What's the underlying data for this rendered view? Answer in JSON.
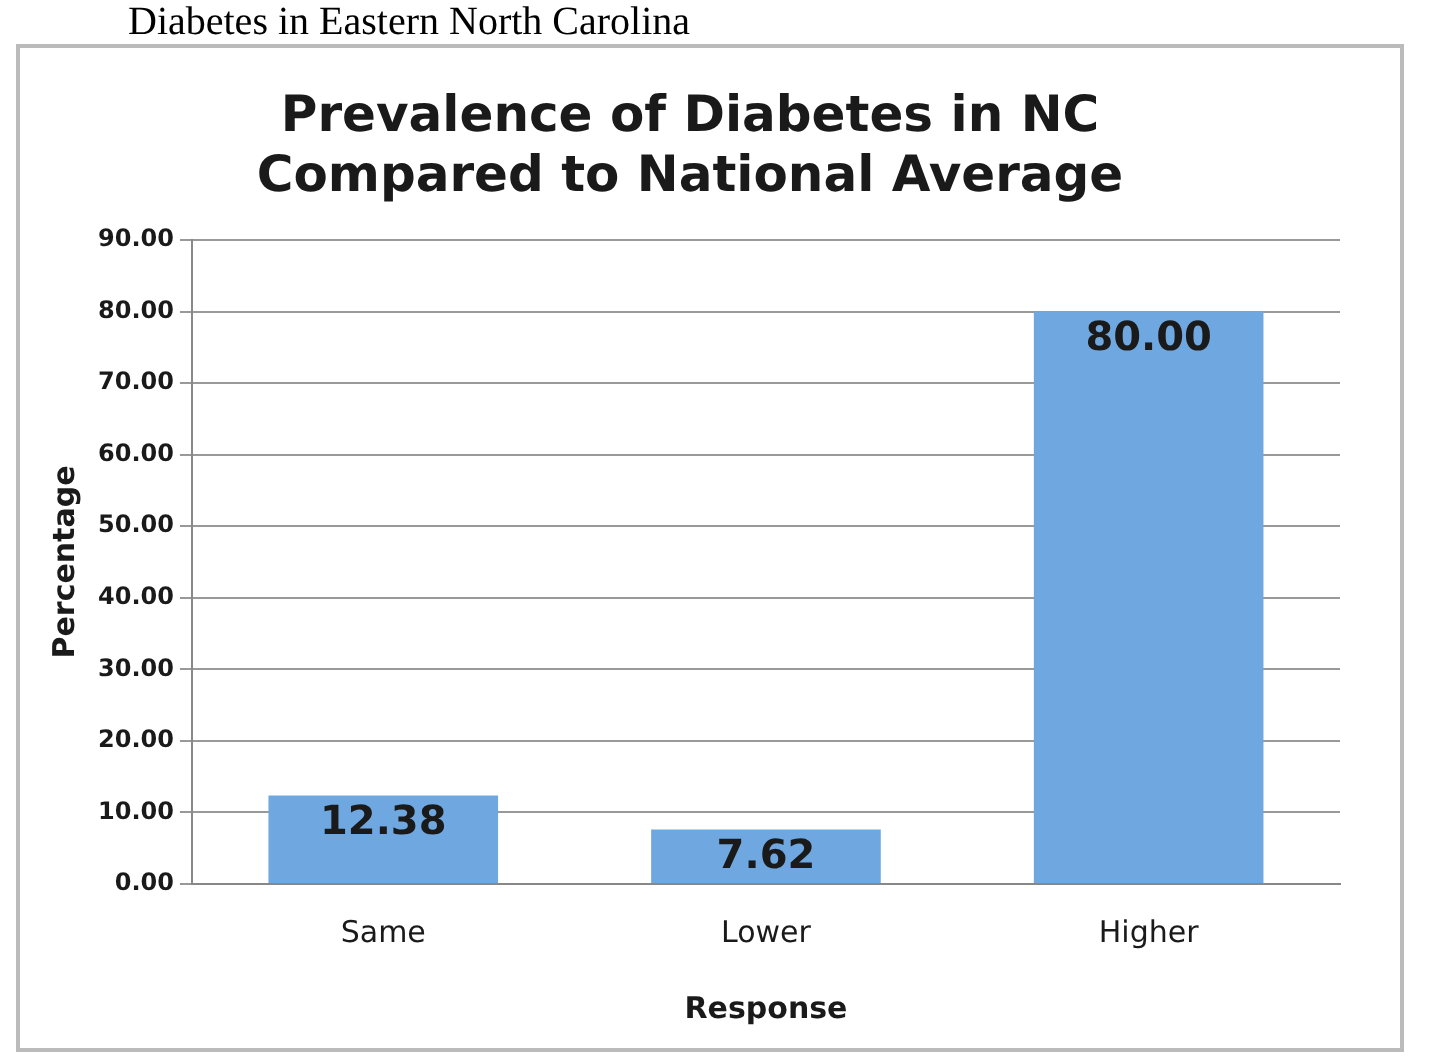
{
  "chart_data": {
    "type": "bar",
    "title": "Prevalence of Diabetes in NC\nCompared to National Average",
    "xlabel": "Response",
    "ylabel": "Percentage",
    "annotations": [
      "Diabetes in Eastern North Carolina"
    ],
    "categories": [
      "Same",
      "Lower",
      "Higher"
    ],
    "values": [
      12.38,
      7.62,
      80
    ],
    "value_labels": [
      "12.38",
      "7.62",
      "80.00"
    ],
    "color": "#6fa8e0",
    "ylim": [
      0,
      90
    ],
    "yticks": [
      {
        "value": 0,
        "label": "0.00"
      },
      {
        "value": 10,
        "label": "10.00"
      },
      {
        "value": 20,
        "label": "20.00"
      },
      {
        "value": 30,
        "label": "30.00"
      },
      {
        "value": 40,
        "label": "40.00"
      },
      {
        "value": 50,
        "label": "50.00"
      },
      {
        "value": 60,
        "label": "60.00"
      },
      {
        "value": 70,
        "label": "70.00"
      },
      {
        "value": 80,
        "label": "80.00"
      },
      {
        "value": 90,
        "label": "90.00"
      }
    ],
    "grid": "y",
    "legend": false
  }
}
